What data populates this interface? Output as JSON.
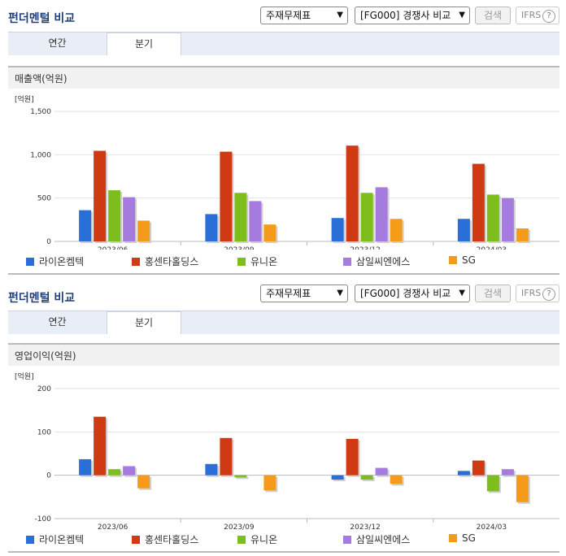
{
  "colors": [
    "#2a6ed8",
    "#d03a12",
    "#7dbd1c",
    "#a57be0",
    "#f59b1a"
  ],
  "panels": [
    {
      "title": "펀더멘털 비교",
      "select1": "주재무제표",
      "select2": "[FG000] 경쟁사 비교",
      "search_label": "검색",
      "ifrs_label": "IFRS",
      "ifrs_help": "?",
      "tabs": [
        {
          "label": "연간"
        },
        {
          "label": "분기"
        }
      ],
      "section_title": "매출액(억원)"
    },
    {
      "title": "펀더멘털 비교",
      "select1": "주재무제표",
      "select2": "[FG000] 경쟁사 비교",
      "search_label": "검색",
      "ifrs_label": "IFRS",
      "ifrs_help": "?",
      "tabs": [
        {
          "label": "연간"
        },
        {
          "label": "분기"
        }
      ],
      "section_title": "영업이익(억원)"
    }
  ],
  "chart_data": [
    {
      "type": "bar",
      "unit_label": "[억원]",
      "categories": [
        "2023/06",
        "2023/09",
        "2023/12",
        "2024/03"
      ],
      "ylim": [
        0,
        1500
      ],
      "yticks": [
        0,
        500,
        1000,
        1500
      ],
      "ytick_labels": [
        "0",
        "500",
        "1,000",
        "1,500"
      ],
      "grid": true,
      "series": [
        {
          "name": "라이온켐텍",
          "values": [
            360,
            315,
            270,
            260
          ]
        },
        {
          "name": "홍센타홀딩스",
          "values": [
            1045,
            1035,
            1105,
            895
          ]
        },
        {
          "name": "유니온",
          "values": [
            590,
            560,
            560,
            540
          ]
        },
        {
          "name": "삼일씨엔에스",
          "values": [
            510,
            465,
            625,
            500
          ]
        },
        {
          "name": "SG",
          "values": [
            240,
            195,
            260,
            150
          ]
        }
      ]
    },
    {
      "type": "bar",
      "unit_label": "[억원]",
      "categories": [
        "2023/06",
        "2023/09",
        "2023/12",
        "2024/03"
      ],
      "ylim": [
        -100,
        200
      ],
      "yticks": [
        -100,
        0,
        100,
        200
      ],
      "ytick_labels": [
        "-100",
        "0",
        "100",
        "200"
      ],
      "grid": true,
      "series": [
        {
          "name": "라이온켐텍",
          "values": [
            37,
            26,
            -10,
            10
          ]
        },
        {
          "name": "홍센타홀딩스",
          "values": [
            135,
            86,
            84,
            34
          ]
        },
        {
          "name": "유니온",
          "values": [
            14,
            -5,
            -10,
            -37
          ]
        },
        {
          "name": "삼일씨엔에스",
          "values": [
            21,
            0,
            17,
            14
          ]
        },
        {
          "name": "SG",
          "values": [
            -30,
            -35,
            -20,
            -62
          ]
        }
      ]
    }
  ]
}
